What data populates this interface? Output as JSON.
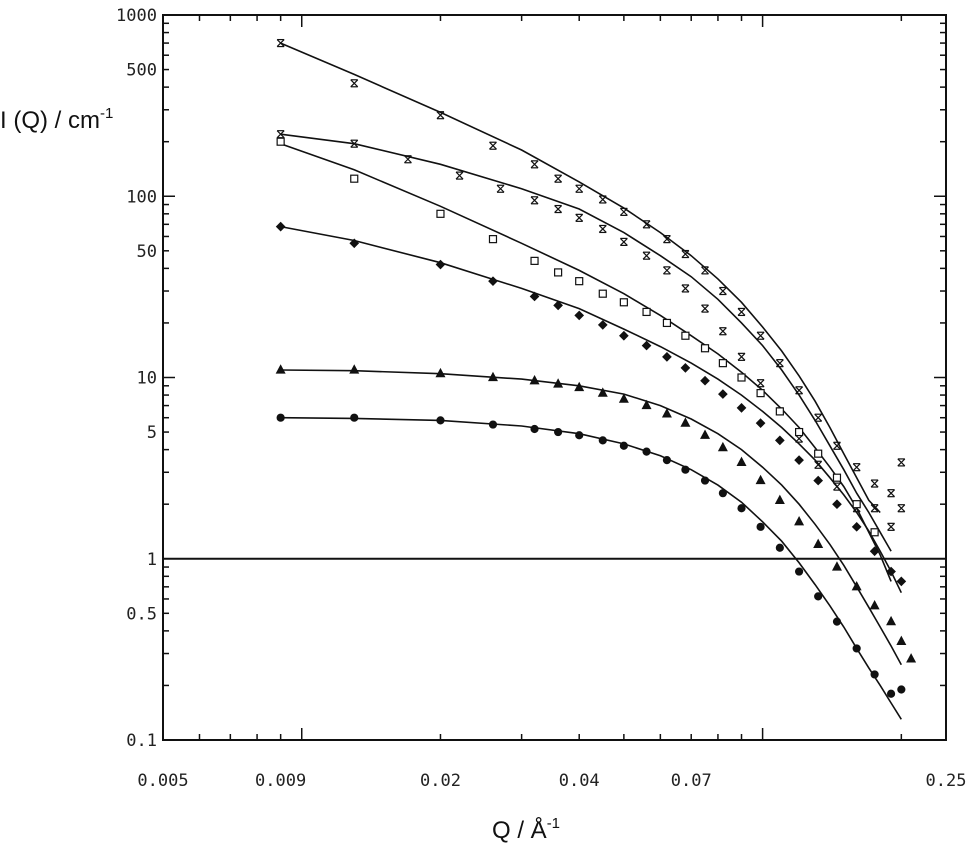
{
  "chart_data": {
    "type": "scatter",
    "title": "",
    "xlabel": {
      "main": "Q / Å",
      "sup": "-1"
    },
    "ylabel": {
      "main": "I (Q) / cm",
      "sup": "-1"
    },
    "xscale": "log",
    "yscale": "log",
    "xlim": [
      0.005,
      0.25
    ],
    "ylim": [
      0.1,
      1000
    ],
    "x_ticks": [
      {
        "value": 0.005,
        "label": "0.005"
      },
      {
        "value": 0.009,
        "label": "0.009"
      },
      {
        "value": 0.02,
        "label": "0.02"
      },
      {
        "value": 0.04,
        "label": "0.04"
      },
      {
        "value": 0.07,
        "label": "0.07"
      },
      {
        "value": 0.25,
        "label": "0.25"
      }
    ],
    "y_ticks": [
      {
        "value": 1000,
        "label": "1000"
      },
      {
        "value": 500,
        "label": "500"
      },
      {
        "value": 100,
        "label": "100"
      },
      {
        "value": 50,
        "label": "50"
      },
      {
        "value": 10,
        "label": "10"
      },
      {
        "value": 5,
        "label": "5"
      },
      {
        "value": 1,
        "label": "1"
      },
      {
        "value": 0.5,
        "label": "0.5"
      },
      {
        "value": 0.1,
        "label": "0.1"
      }
    ],
    "reference_line_y": 1,
    "grid": false,
    "legend": "none",
    "series": [
      {
        "marker": "x",
        "x": [
          0.009,
          0.013,
          0.02,
          0.026,
          0.032,
          0.036,
          0.04,
          0.045,
          0.05,
          0.056,
          0.062,
          0.068,
          0.075,
          0.082,
          0.09,
          0.099,
          0.109,
          0.12,
          0.132,
          0.145,
          0.16,
          0.175,
          0.19,
          0.2
        ],
        "y": [
          700,
          420,
          280,
          190,
          150,
          125,
          110,
          96,
          82,
          70,
          58,
          48,
          39,
          30,
          23,
          17,
          12,
          8.5,
          6.0,
          4.2,
          3.2,
          2.6,
          2.3,
          3.4
        ],
        "fit_x": [
          0.009,
          0.013,
          0.02,
          0.03,
          0.04,
          0.05,
          0.06,
          0.07,
          0.08,
          0.09,
          0.1,
          0.11,
          0.12,
          0.13,
          0.14,
          0.15,
          0.16,
          0.17,
          0.18
        ],
        "fit_y": [
          700,
          470,
          290,
          180,
          120,
          86,
          63,
          47,
          35,
          26,
          19,
          14,
          10.2,
          7.4,
          5.3,
          3.8,
          2.8,
          2.1,
          1.8
        ]
      },
      {
        "marker": "x",
        "x": [
          0.009,
          0.013,
          0.017,
          0.022,
          0.027,
          0.032,
          0.036,
          0.04,
          0.045,
          0.05,
          0.056,
          0.062,
          0.068,
          0.075,
          0.082,
          0.09,
          0.099,
          0.109,
          0.12,
          0.132,
          0.145,
          0.16,
          0.175,
          0.19,
          0.2
        ],
        "y": [
          220,
          195,
          160,
          130,
          110,
          95,
          85,
          76,
          66,
          56,
          47,
          39,
          31,
          24,
          18,
          13,
          9.3,
          6.5,
          4.6,
          3.3,
          2.5,
          1.9,
          1.9,
          1.5,
          1.9
        ],
        "fit_x": [
          0.009,
          0.013,
          0.02,
          0.03,
          0.04,
          0.05,
          0.06,
          0.07,
          0.08,
          0.09,
          0.1,
          0.11,
          0.12,
          0.13,
          0.14,
          0.15,
          0.16,
          0.17,
          0.18,
          0.19
        ],
        "fit_y": [
          220,
          195,
          150,
          110,
          85,
          63,
          47,
          36,
          27,
          20,
          15,
          11,
          8.0,
          5.8,
          4.2,
          3.1,
          2.3,
          1.8,
          1.4,
          1.1
        ]
      },
      {
        "marker": "square-open",
        "x": [
          0.009,
          0.013,
          0.02,
          0.026,
          0.032,
          0.036,
          0.04,
          0.045,
          0.05,
          0.056,
          0.062,
          0.068,
          0.075,
          0.082,
          0.09,
          0.099,
          0.109,
          0.12,
          0.132,
          0.145,
          0.16,
          0.175
        ],
        "y": [
          200,
          125,
          80,
          58,
          44,
          38,
          34,
          29,
          26,
          23,
          20,
          17,
          14.5,
          12,
          10,
          8.2,
          6.5,
          5.0,
          3.8,
          2.8,
          2.0,
          1.4
        ],
        "fit_x": [
          0.009,
          0.013,
          0.02,
          0.03,
          0.04,
          0.05,
          0.06,
          0.07,
          0.08,
          0.09,
          0.1,
          0.11,
          0.12,
          0.13,
          0.14,
          0.15,
          0.16,
          0.17,
          0.18,
          0.19
        ],
        "fit_y": [
          195,
          140,
          88,
          55,
          39,
          29,
          22,
          17,
          13.5,
          10.7,
          8.5,
          6.7,
          5.3,
          4.1,
          3.2,
          2.5,
          1.9,
          1.4,
          1.05,
          0.75
        ]
      },
      {
        "marker": "diamond",
        "x": [
          0.009,
          0.013,
          0.02,
          0.026,
          0.032,
          0.036,
          0.04,
          0.045,
          0.05,
          0.056,
          0.062,
          0.068,
          0.075,
          0.082,
          0.09,
          0.099,
          0.109,
          0.12,
          0.132,
          0.145,
          0.16,
          0.175,
          0.19,
          0.2
        ],
        "y": [
          68,
          55,
          42,
          34,
          28,
          25,
          22,
          19.5,
          17,
          15,
          13,
          11.3,
          9.6,
          8.1,
          6.8,
          5.6,
          4.5,
          3.5,
          2.7,
          2.0,
          1.5,
          1.1,
          0.85,
          0.75
        ],
        "fit_x": [
          0.009,
          0.013,
          0.02,
          0.03,
          0.04,
          0.05,
          0.06,
          0.07,
          0.08,
          0.09,
          0.1,
          0.11,
          0.12,
          0.13,
          0.14,
          0.15,
          0.16,
          0.17,
          0.18,
          0.19,
          0.2
        ],
        "fit_y": [
          68,
          57,
          43,
          31,
          24,
          18.5,
          14.8,
          12,
          9.8,
          8.0,
          6.5,
          5.3,
          4.3,
          3.5,
          2.8,
          2.25,
          1.8,
          1.42,
          1.1,
          0.85,
          0.65
        ]
      },
      {
        "marker": "triangle",
        "x": [
          0.009,
          0.013,
          0.02,
          0.026,
          0.032,
          0.036,
          0.04,
          0.045,
          0.05,
          0.056,
          0.062,
          0.068,
          0.075,
          0.082,
          0.09,
          0.099,
          0.109,
          0.12,
          0.132,
          0.145,
          0.16,
          0.175,
          0.19,
          0.2,
          0.21
        ],
        "y": [
          11,
          11,
          10.5,
          10,
          9.6,
          9.2,
          8.8,
          8.2,
          7.6,
          7.0,
          6.3,
          5.6,
          4.8,
          4.1,
          3.4,
          2.7,
          2.1,
          1.6,
          1.2,
          0.9,
          0.7,
          0.55,
          0.45,
          0.35,
          0.28
        ],
        "fit_x": [
          0.009,
          0.013,
          0.02,
          0.03,
          0.04,
          0.05,
          0.06,
          0.07,
          0.08,
          0.09,
          0.1,
          0.11,
          0.12,
          0.13,
          0.14,
          0.15,
          0.16,
          0.17,
          0.18,
          0.19,
          0.2
        ],
        "fit_y": [
          11,
          10.9,
          10.5,
          9.8,
          9.0,
          8.1,
          7.0,
          5.9,
          4.9,
          4.0,
          3.2,
          2.55,
          2.0,
          1.55,
          1.2,
          0.92,
          0.7,
          0.54,
          0.42,
          0.33,
          0.26
        ]
      },
      {
        "marker": "circle",
        "x": [
          0.009,
          0.013,
          0.02,
          0.026,
          0.032,
          0.036,
          0.04,
          0.045,
          0.05,
          0.056,
          0.062,
          0.068,
          0.075,
          0.082,
          0.09,
          0.099,
          0.109,
          0.12,
          0.132,
          0.145,
          0.16,
          0.175,
          0.19,
          0.2
        ],
        "y": [
          6,
          6,
          5.8,
          5.5,
          5.2,
          5.0,
          4.8,
          4.5,
          4.2,
          3.9,
          3.5,
          3.1,
          2.7,
          2.3,
          1.9,
          1.5,
          1.15,
          0.85,
          0.62,
          0.45,
          0.32,
          0.23,
          0.18,
          0.19
        ],
        "fit_x": [
          0.009,
          0.013,
          0.02,
          0.03,
          0.04,
          0.05,
          0.06,
          0.07,
          0.08,
          0.09,
          0.1,
          0.11,
          0.12,
          0.13,
          0.14,
          0.15,
          0.16,
          0.17,
          0.18,
          0.19,
          0.2
        ],
        "fit_y": [
          6,
          5.95,
          5.8,
          5.4,
          4.9,
          4.3,
          3.7,
          3.1,
          2.55,
          2.05,
          1.6,
          1.25,
          0.95,
          0.72,
          0.55,
          0.42,
          0.32,
          0.25,
          0.2,
          0.16,
          0.13
        ]
      }
    ]
  }
}
